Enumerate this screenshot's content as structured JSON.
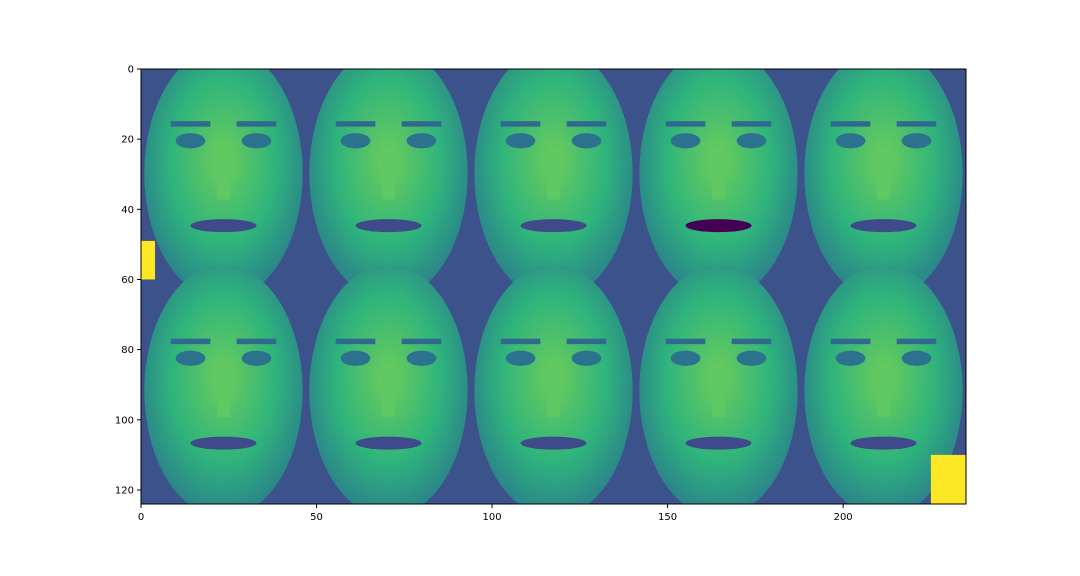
{
  "chart_data": {
    "type": "heatmap",
    "description_visible": "image grid",
    "colormap": "viridis",
    "grid": false,
    "xlim": [
      0,
      235
    ],
    "ylim": [
      124,
      0
    ],
    "x_ticks": [
      0,
      50,
      100,
      150,
      200
    ],
    "y_ticks": [
      0,
      20,
      40,
      60,
      80,
      100,
      120
    ],
    "grid_rows": 2,
    "grid_cols": 5,
    "tile_width": 47,
    "tile_height": 62,
    "tiles": [
      {
        "row": 0,
        "col": 0,
        "base": 0.55
      },
      {
        "row": 0,
        "col": 1,
        "base": 0.45
      },
      {
        "row": 0,
        "col": 2,
        "base": 0.62
      },
      {
        "row": 0,
        "col": 3,
        "base": 0.5
      },
      {
        "row": 0,
        "col": 4,
        "base": 0.48
      },
      {
        "row": 1,
        "col": 0,
        "base": 0.5
      },
      {
        "row": 1,
        "col": 1,
        "base": 0.52
      },
      {
        "row": 1,
        "col": 2,
        "base": 0.47
      },
      {
        "row": 1,
        "col": 3,
        "base": 0.5
      },
      {
        "row": 1,
        "col": 4,
        "base": 0.52
      }
    ],
    "colors": {
      "viridis_dark": "#440154",
      "viridis_mid_blue": "#31688e",
      "viridis_teal": "#21918c",
      "viridis_green": "#35b779",
      "viridis_yellow": "#fde725"
    }
  }
}
